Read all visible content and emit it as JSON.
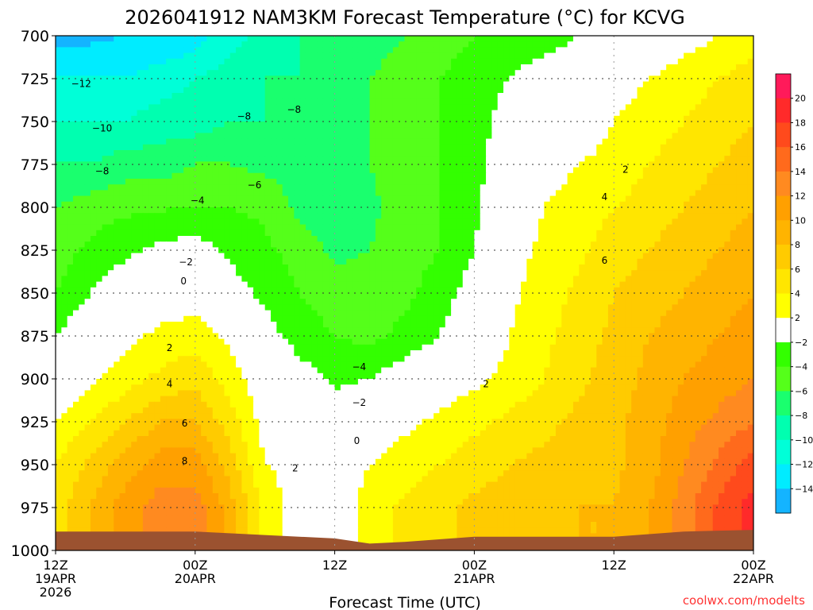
{
  "chart_data": {
    "type": "heatmap",
    "subtype": "time-height filled contour",
    "title": "2026041912 NAM3KM Forecast Temperature (°C) for KCVG",
    "xlabel": "Forecast Time (UTC)",
    "ylabel": "",
    "credit": "coolwx.com/modelts",
    "x_range_hours": [
      0,
      60
    ],
    "y_range_hpa": [
      700,
      1000
    ],
    "y_scale": "linear, inverted (pressure increases downward)",
    "y_ticks": [
      "700",
      "725",
      "750",
      "775",
      "800",
      "825",
      "850",
      "875",
      "900",
      "925",
      "950",
      "975",
      "1000"
    ],
    "x_ticks": [
      {
        "hour": 0,
        "lines": [
          "12Z",
          "19APR",
          "2026"
        ]
      },
      {
        "hour": 12,
        "lines": [
          "00Z",
          "20APR"
        ]
      },
      {
        "hour": 24,
        "lines": [
          "12Z"
        ]
      },
      {
        "hour": 36,
        "lines": [
          "00Z",
          "21APR"
        ]
      },
      {
        "hour": 48,
        "lines": [
          "12Z"
        ]
      },
      {
        "hour": 60,
        "lines": [
          "00Z",
          "22APR"
        ]
      }
    ],
    "grid": true,
    "legend_placement": "right",
    "colorbar": {
      "labels": [
        "20",
        "18",
        "16",
        "14",
        "12",
        "10",
        "8",
        "6",
        "4",
        "2",
        "−2",
        "−4",
        "−6",
        "−8",
        "−10",
        "−12",
        "−14"
      ],
      "colors": [
        "#ff1a5a",
        "#ff2a2a",
        "#ff4a1c",
        "#ff6a1c",
        "#ff8a20",
        "#ffa000",
        "#ffb400",
        "#ffcb00",
        "#ffe600",
        "#ffff00",
        "#ffffff",
        "#33ff00",
        "#55ff1a",
        "#1aff6e",
        "#00ffb0",
        "#00ffd8",
        "#00ecff",
        "#14b4ff"
      ]
    },
    "contour_labels": [
      {
        "value": "-12",
        "hour": 2.2,
        "hpa": 728
      },
      {
        "value": "-10",
        "hour": 4.0,
        "hpa": 754
      },
      {
        "value": "-8",
        "hour": 4.0,
        "hpa": 779
      },
      {
        "value": "-4",
        "hour": 12.2,
        "hpa": 796
      },
      {
        "value": "-2",
        "hour": 11.2,
        "hpa": 832
      },
      {
        "value": "0",
        "hour": 11.0,
        "hpa": 843
      },
      {
        "value": "-8",
        "hour": 16.2,
        "hpa": 747
      },
      {
        "value": "-8",
        "hour": 20.5,
        "hpa": 743
      },
      {
        "value": "-6",
        "hour": 17.1,
        "hpa": 787
      },
      {
        "value": "2",
        "hour": 9.8,
        "hpa": 882
      },
      {
        "value": "4",
        "hour": 9.8,
        "hpa": 903
      },
      {
        "value": "6",
        "hour": 11.1,
        "hpa": 926
      },
      {
        "value": "8",
        "hour": 11.1,
        "hpa": 948
      },
      {
        "value": "2",
        "hour": 20.6,
        "hpa": 952
      },
      {
        "value": "-4",
        "hour": 26.1,
        "hpa": 893
      },
      {
        "value": "-2",
        "hour": 26.1,
        "hpa": 914
      },
      {
        "value": "0",
        "hour": 25.9,
        "hpa": 936
      },
      {
        "value": "2",
        "hour": 37.0,
        "hpa": 903
      },
      {
        "value": "2",
        "hour": 49.0,
        "hpa": 778
      },
      {
        "value": "4",
        "hour": 47.2,
        "hpa": 794
      },
      {
        "value": "6",
        "hour": 47.2,
        "hpa": 831
      }
    ],
    "temperature_field": {
      "levels_hpa": [
        700,
        725,
        750,
        775,
        800,
        825,
        850,
        875,
        900,
        925,
        950,
        975,
        1000
      ],
      "hours": [
        0,
        3,
        6,
        9,
        12,
        15,
        18,
        21,
        24,
        27,
        30,
        33,
        36,
        39,
        42,
        45,
        48,
        51,
        54,
        57,
        60
      ],
      "values_c": [
        [
          -15,
          -14.5,
          -14,
          -14,
          -13,
          -11,
          -9,
          -8,
          -8,
          -7,
          -6,
          -5,
          -4,
          -3,
          -3,
          -2,
          -1,
          0,
          1,
          2,
          3
        ],
        [
          -12,
          -12,
          -12,
          -11,
          -10,
          -9,
          -8,
          -8,
          -7,
          -6,
          -5,
          -4,
          -3,
          -2,
          -1,
          0,
          1,
          2,
          3,
          4,
          5
        ],
        [
          -10,
          -10,
          -10,
          -9,
          -9,
          -8,
          -8,
          -8,
          -7,
          -6,
          -5,
          -4,
          -3,
          -1,
          0,
          1,
          2,
          3,
          4,
          5,
          6
        ],
        [
          -8,
          -8,
          -7,
          -7,
          -6,
          -6,
          -6.5,
          -7,
          -7,
          -6,
          -5,
          -4,
          -3,
          0,
          1,
          2,
          2.5,
          4,
          5,
          6,
          7
        ],
        [
          -6,
          -5,
          -4.5,
          -4.2,
          -4,
          -4,
          -4.5,
          -6.5,
          -7,
          -6.5,
          -5,
          -4,
          -2.5,
          0.5,
          2,
          3,
          4,
          5,
          6,
          7,
          8
        ],
        [
          -5,
          -3.5,
          -2.5,
          -1.5,
          -1,
          -2.5,
          -3.5,
          -5,
          -6.5,
          -6,
          -5,
          -4,
          -2,
          1,
          2.5,
          3.5,
          5,
          6,
          7,
          8,
          9
        ],
        [
          -4,
          -2,
          -0.5,
          0.5,
          1,
          -1,
          -2.5,
          -4,
          -5,
          -5,
          -4.5,
          -3,
          -1,
          1.5,
          3,
          4.5,
          6,
          7,
          8,
          9,
          10
        ],
        [
          -2,
          0,
          1.5,
          2.5,
          3,
          1.5,
          -1,
          -3,
          -4,
          -4.5,
          -3.5,
          -2,
          0,
          2,
          3.5,
          5,
          6.5,
          8,
          9,
          10,
          11
        ],
        [
          0,
          1.5,
          3,
          4.5,
          5.5,
          3,
          0.5,
          -1,
          -2.5,
          -2,
          -0.5,
          0.5,
          1.5,
          2.5,
          4,
          5.5,
          7,
          8.5,
          10,
          11,
          12
        ],
        [
          2,
          4,
          6,
          8,
          8,
          5,
          1,
          0.5,
          -0.5,
          0.5,
          1.5,
          2.5,
          3.5,
          4.5,
          5.5,
          6.5,
          7.5,
          9,
          11,
          12.5,
          14
        ],
        [
          4,
          6.5,
          9,
          11,
          11,
          7,
          2,
          1.5,
          0.5,
          2,
          3,
          4,
          5,
          6,
          6.5,
          7,
          7.5,
          9,
          12,
          14.5,
          17
        ],
        [
          5,
          8,
          11,
          13,
          13,
          9,
          3,
          1,
          0.5,
          3,
          4.5,
          5.5,
          6.5,
          7,
          7.5,
          8,
          8,
          10,
          13,
          16.5,
          19
        ],
        [
          5,
          8,
          11,
          13,
          13,
          9,
          3,
          1,
          0.5,
          3,
          4.5,
          5.5,
          6.5,
          7,
          7.5,
          8,
          8,
          10,
          13,
          16.5,
          19
        ]
      ]
    },
    "terrain": {
      "label": "surface",
      "color": "#9b5230",
      "surface_hpa_by_hour": [
        [
          0,
          989
        ],
        [
          6,
          989
        ],
        [
          12,
          989
        ],
        [
          18,
          991
        ],
        [
          24,
          993
        ],
        [
          27,
          996
        ],
        [
          30,
          995
        ],
        [
          36,
          992
        ],
        [
          42,
          992
        ],
        [
          48,
          992
        ],
        [
          54,
          989
        ],
        [
          60,
          988
        ]
      ]
    }
  }
}
